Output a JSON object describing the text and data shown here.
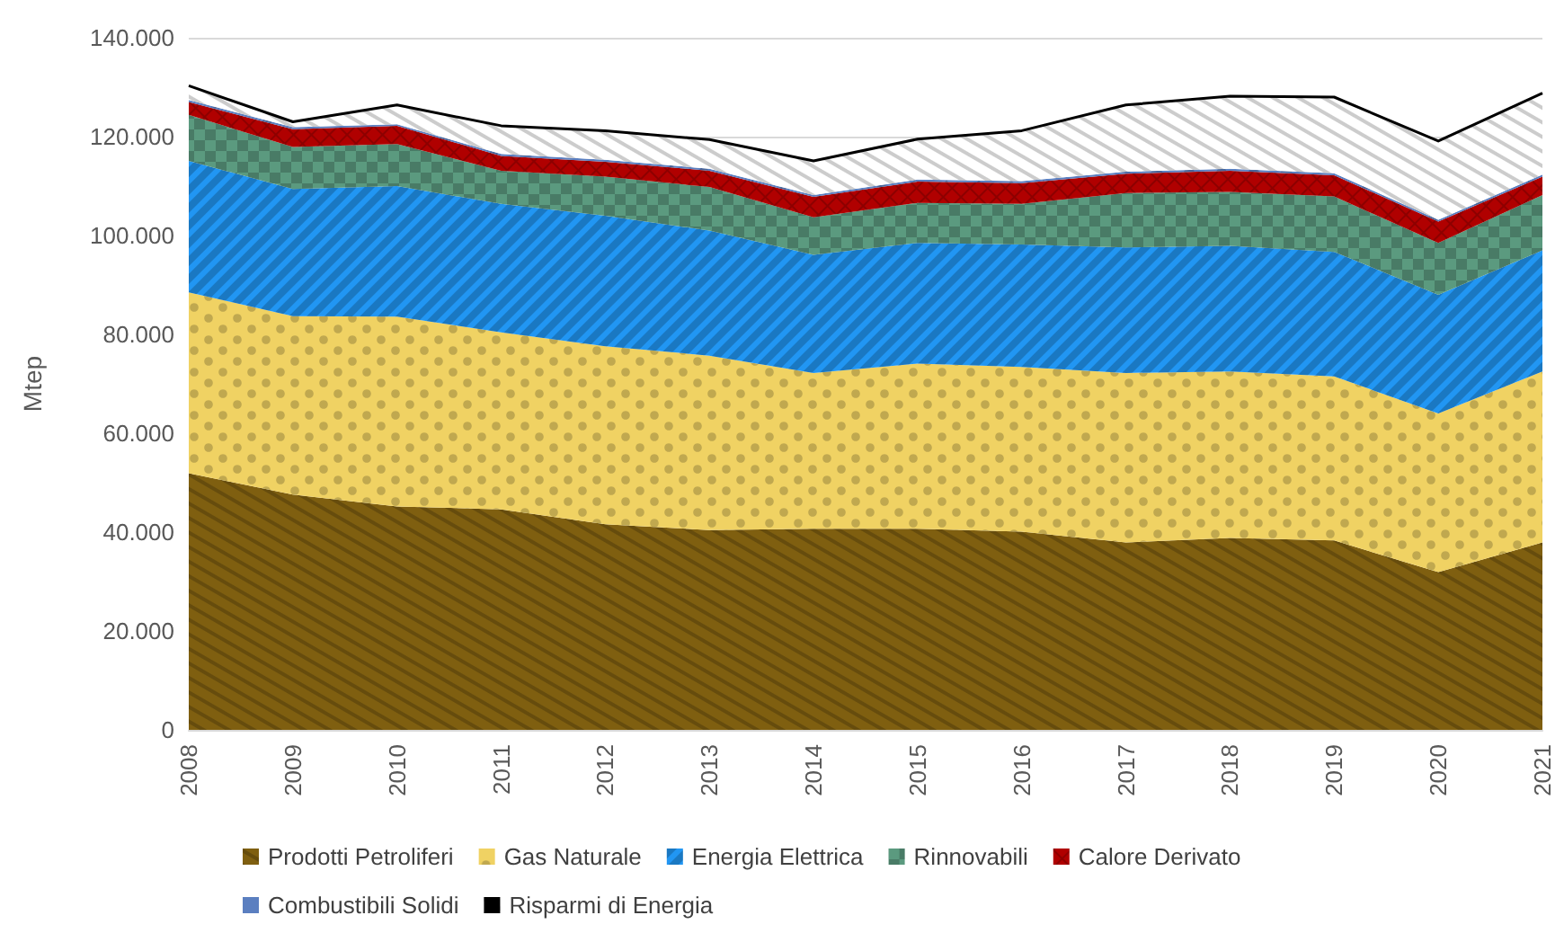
{
  "chart_data": {
    "type": "area",
    "stacked": true,
    "ylabel": "Mtep",
    "categories": [
      "2008",
      "2009",
      "2010",
      "2011",
      "2012",
      "2013",
      "2014",
      "2015",
      "2016",
      "2017",
      "2018",
      "2019",
      "2020",
      "2021"
    ],
    "ylim": [
      0,
      140000
    ],
    "yticks": [
      0,
      {
        "value": 20000,
        "label": "20.000"
      },
      {
        "value": 40000,
        "label": "40.000"
      },
      {
        "value": 60000,
        "label": "60.000"
      },
      {
        "value": 80000,
        "label": "80.000"
      },
      {
        "value": 100000,
        "label": "100.000"
      },
      {
        "value": 120000,
        "label": "120.000"
      },
      {
        "value": 140000,
        "label": "140.000"
      }
    ],
    "grid": "y",
    "legend": "bottom",
    "series": [
      {
        "name": "Prodotti Petroliferi",
        "color": "#7f5f10",
        "values": [
          51900,
          47600,
          45200,
          44600,
          41600,
          40400,
          40700,
          40700,
          40100,
          37900,
          38800,
          38300,
          31900,
          37900
        ]
      },
      {
        "name": "Gas Naturale",
        "color": "#f0d263",
        "values": [
          36600,
          36100,
          38400,
          35800,
          36000,
          35300,
          31500,
          33400,
          33300,
          34300,
          33700,
          33200,
          32100,
          34600
        ]
      },
      {
        "name": "Energia Elettrica",
        "color": "#2196f3",
        "values": [
          26600,
          25700,
          26400,
          26000,
          26400,
          25300,
          23900,
          24400,
          24800,
          25400,
          25400,
          25200,
          24000,
          24500
        ]
      },
      {
        "name": "Rinnovabili",
        "color": "#5b9a7f",
        "values": [
          9300,
          8500,
          8500,
          6700,
          7900,
          8800,
          7600,
          8100,
          8200,
          11000,
          10900,
          11200,
          10500,
          11200
        ]
      },
      {
        "name": "Calore Derivato",
        "color": "#b00000",
        "values": [
          2600,
          3600,
          3700,
          3000,
          3000,
          3300,
          4100,
          4300,
          4200,
          3900,
          4300,
          4300,
          4300,
          3700
        ]
      },
      {
        "name": "Combustibili Solidi",
        "color": "#5b7fc0",
        "values": [
          400,
          400,
          300,
          400,
          400,
          400,
          400,
          400,
          400,
          400,
          400,
          400,
          400,
          400
        ]
      },
      {
        "name": "Risparmi di Energia",
        "color": "#000000",
        "values": [
          2900,
          1100,
          3900,
          5700,
          5900,
          5900,
          6900,
          8200,
          10200,
          13500,
          14700,
          15400,
          15900,
          16500
        ]
      }
    ]
  }
}
